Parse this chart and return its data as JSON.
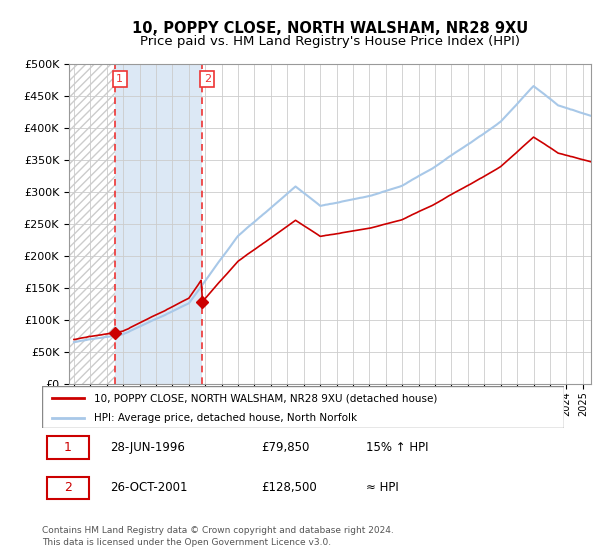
{
  "title": "10, POPPY CLOSE, NORTH WALSHAM, NR28 9XU",
  "subtitle": "Price paid vs. HM Land Registry's House Price Index (HPI)",
  "ylabel_ticks": [
    "£0",
    "£50K",
    "£100K",
    "£150K",
    "£200K",
    "£250K",
    "£300K",
    "£350K",
    "£400K",
    "£450K",
    "£500K"
  ],
  "ytick_vals": [
    0,
    50000,
    100000,
    150000,
    200000,
    250000,
    300000,
    350000,
    400000,
    450000,
    500000
  ],
  "xlim_start": 1993.7,
  "xlim_end": 2025.5,
  "ylim": [
    0,
    500000
  ],
  "purchase1_year": 1996.49,
  "purchase1_price": 79850,
  "purchase2_year": 2001.82,
  "purchase2_price": 128500,
  "hpi_line_color": "#a8c8e8",
  "price_line_color": "#cc0000",
  "vline_color": "#ee3333",
  "hatch_left_color": "#d8d8d8",
  "fill_between_color": "#dce8f5",
  "legend_label1": "10, POPPY CLOSE, NORTH WALSHAM, NR28 9XU (detached house)",
  "legend_label2": "HPI: Average price, detached house, North Norfolk",
  "table_row1": [
    "1",
    "28-JUN-1996",
    "£79,850",
    "15% ↑ HPI"
  ],
  "table_row2": [
    "2",
    "26-OCT-2001",
    "£128,500",
    "≈ HPI"
  ],
  "footer": "Contains HM Land Registry data © Crown copyright and database right 2024.\nThis data is licensed under the Open Government Licence v3.0."
}
